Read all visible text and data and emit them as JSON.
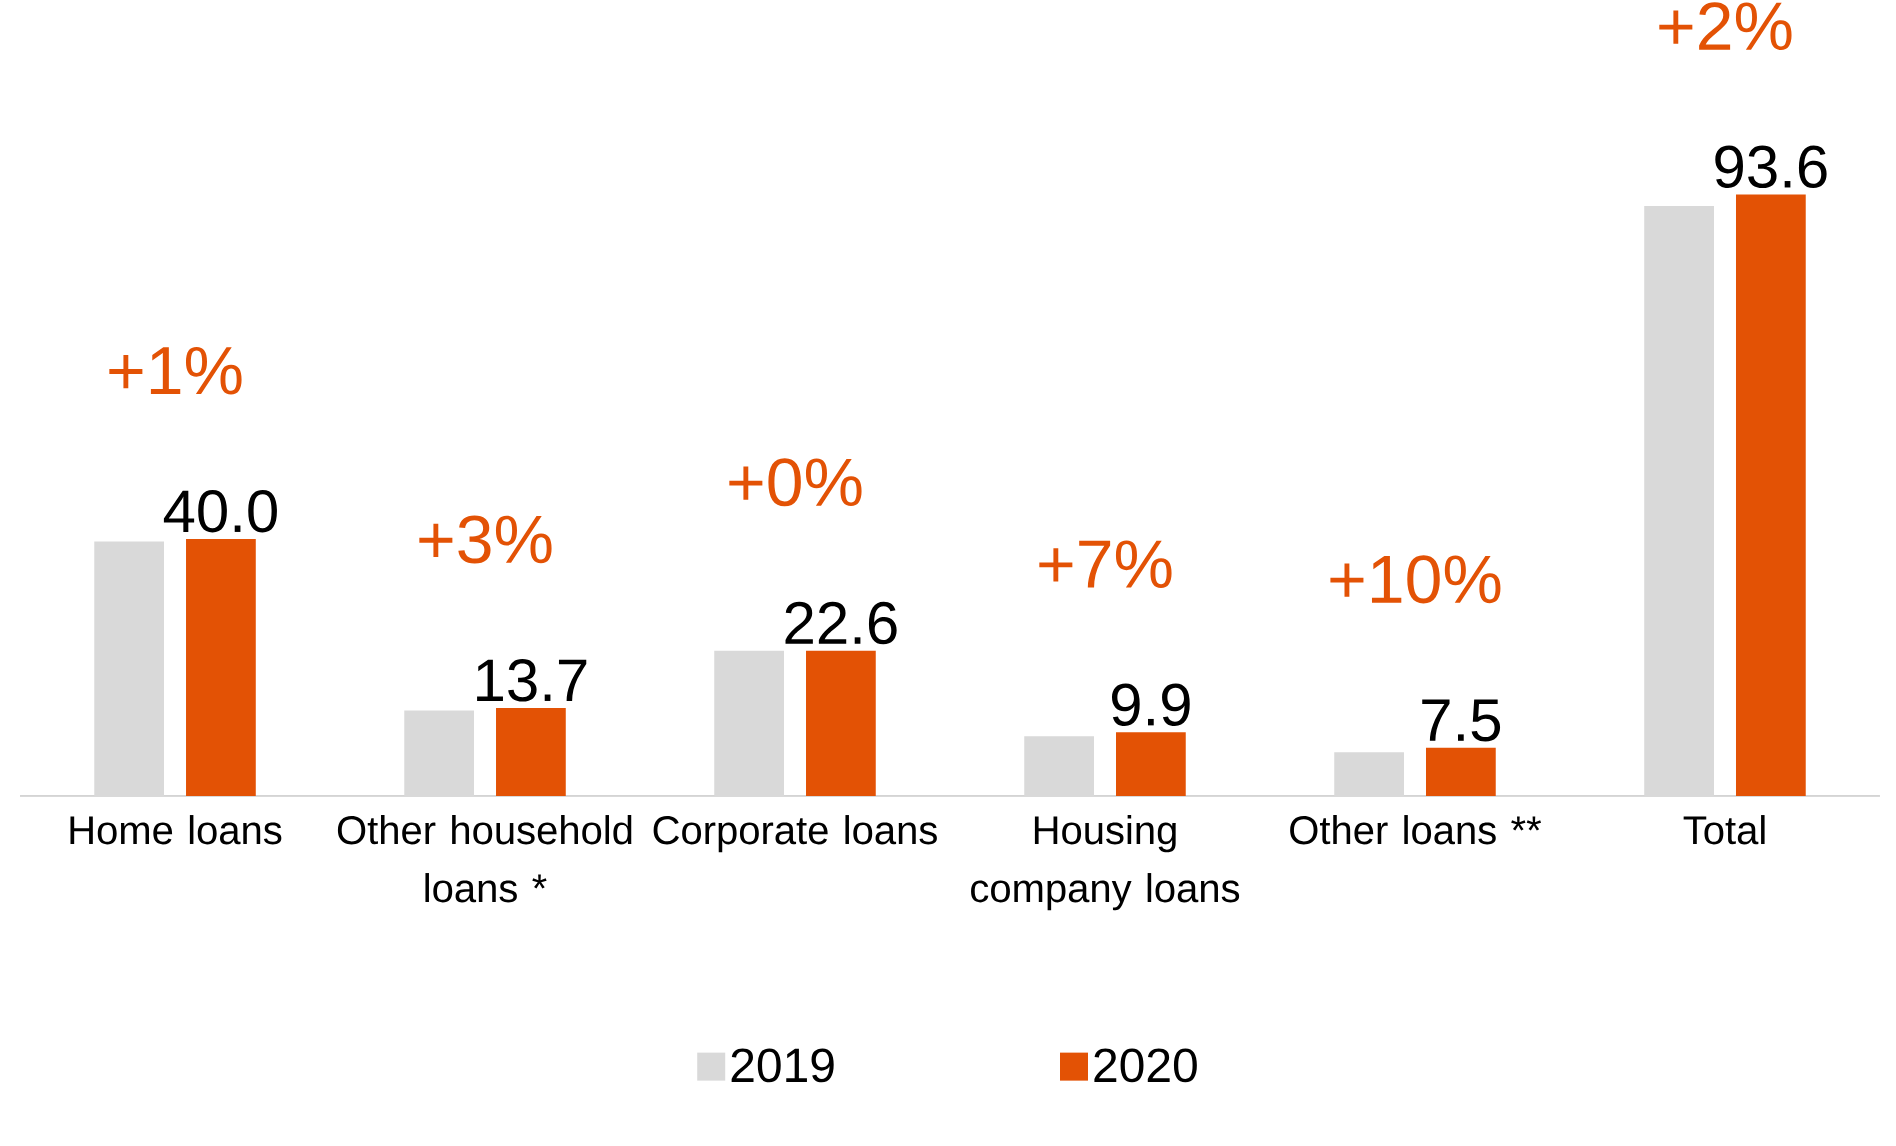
{
  "chart_data": {
    "type": "bar",
    "categories": [
      "Home loans",
      "Other household loans *",
      "Corporate loans",
      "Housing company loans",
      "Other loans **",
      "Total"
    ],
    "series": [
      {
        "name": "2019",
        "color": "#d9d9d9",
        "values": [
          39.6,
          13.3,
          22.6,
          9.3,
          6.8,
          91.8
        ]
      },
      {
        "name": "2020",
        "color": "#e35205",
        "values": [
          40.0,
          13.7,
          22.6,
          9.9,
          7.5,
          93.6
        ],
        "value_labels": [
          "40.0",
          "13.7",
          "22.6",
          "9.9",
          "7.5",
          "93.6"
        ]
      }
    ],
    "annotations": [
      "+1%",
      "+3%",
      "+0%",
      "+7%",
      "+10%",
      "+2%"
    ],
    "legend": "bottom"
  }
}
